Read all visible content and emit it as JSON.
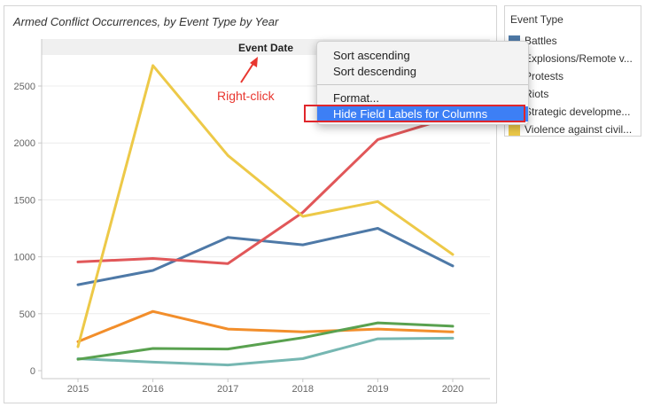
{
  "chart_title": "Armed Conflict Occurrences, by Event Type by Year",
  "column_header": "Event Date",
  "annotation": "Right-click",
  "legend": {
    "title": "Event Type",
    "items": [
      {
        "label": "Battles",
        "color": "#4e79a7"
      },
      {
        "label": "Explosions/Remote v...",
        "color": "#f28e2b"
      },
      {
        "label": "Protests",
        "color": "#e15759"
      },
      {
        "label": "Riots",
        "color": "#76b7b2"
      },
      {
        "label": "Strategic developme...",
        "color": "#59a14f"
      },
      {
        "label": "Violence against civil...",
        "color": "#edc948"
      }
    ]
  },
  "context_menu": {
    "items": [
      {
        "label": "Sort ascending"
      },
      {
        "label": "Sort descending"
      },
      {
        "label": "Format..."
      },
      {
        "label": "Hide Field Labels for Columns"
      }
    ]
  },
  "chart_data": {
    "type": "line",
    "title": "Armed Conflict Occurrences, by Event Type by Year",
    "xlabel": "Event Date",
    "ylabel": "",
    "x": [
      2015,
      2016,
      2017,
      2018,
      2019,
      2020
    ],
    "ylim": [
      0,
      2800
    ],
    "yticks": [
      0,
      500,
      1000,
      1500,
      2000,
      2500
    ],
    "grid": true,
    "legend_position": "right",
    "series": [
      {
        "name": "Battles",
        "color": "#4e79a7",
        "values": [
          755,
          880,
          1170,
          1105,
          1250,
          920
        ]
      },
      {
        "name": "Explosions/Remote v...",
        "color": "#f28e2b",
        "values": [
          255,
          520,
          365,
          340,
          365,
          340
        ]
      },
      {
        "name": "Protests",
        "color": "#e15759",
        "values": [
          955,
          985,
          940,
          1390,
          2030,
          2230
        ]
      },
      {
        "name": "Riots",
        "color": "#76b7b2",
        "values": [
          105,
          75,
          50,
          105,
          280,
          285
        ]
      },
      {
        "name": "Strategic developme...",
        "color": "#59a14f",
        "values": [
          100,
          195,
          190,
          290,
          420,
          390
        ]
      },
      {
        "name": "Violence against civil...",
        "color": "#edc948",
        "values": [
          210,
          2680,
          1890,
          1355,
          1485,
          1020
        ]
      }
    ]
  }
}
